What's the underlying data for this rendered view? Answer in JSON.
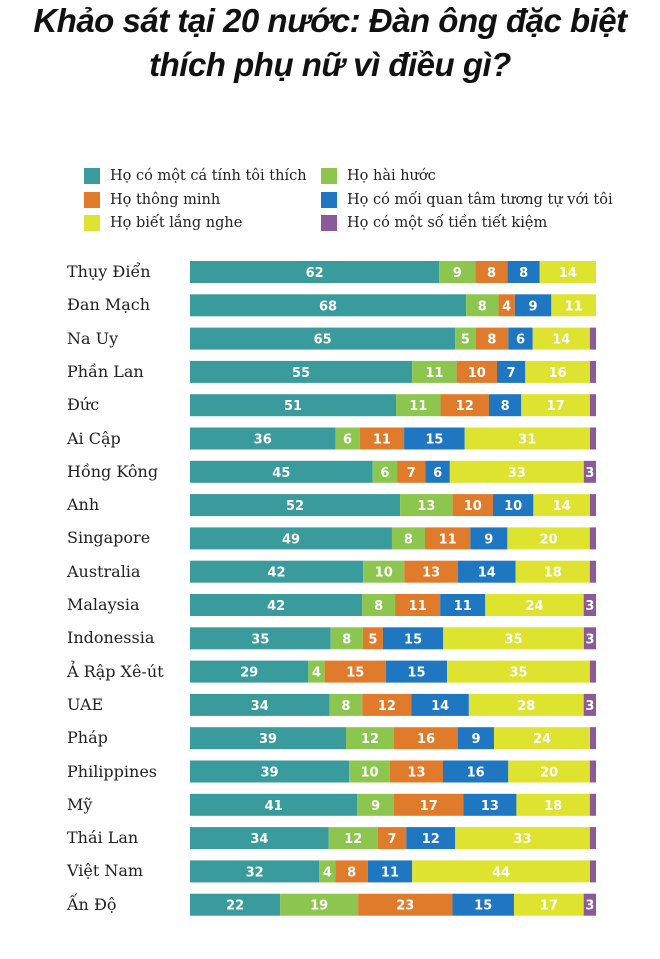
{
  "chart_data": {
    "type": "bar",
    "orientation": "horizontal",
    "stacked": true,
    "title": "Khảo sát tại 20 nước: Đàn ông đặc biệt thích phụ nữ vì điều gì?",
    "title_lines": [
      "Khảo sát tại 20 nước: Đàn ông đặc biệt",
      "thích phụ nữ vì điều gì?"
    ],
    "legend_placement": "top",
    "grid": false,
    "categories": [
      "Thụy Điển",
      "Đan Mạch",
      "Na Uy",
      "Phần Lan",
      "Đức",
      "Ai Cập",
      "Hồng Kông",
      "Anh",
      "Singapore",
      "Australia",
      "Malaysia",
      "Indonessia",
      "Ả Rập Xê-út",
      "UAE",
      "Pháp",
      "Philippines",
      "Mỹ",
      "Thái Lan",
      "Việt Nam",
      "Ấn Độ"
    ],
    "series": [
      {
        "name": "Họ có một cá tính tôi thích",
        "color": "#3a9b9d",
        "values": [
          62,
          68,
          65,
          55,
          51,
          36,
          45,
          52,
          49,
          42,
          42,
          35,
          29,
          34,
          39,
          39,
          41,
          34,
          32,
          22
        ]
      },
      {
        "name": "Họ hài hước",
        "color": "#8cc64e",
        "values": [
          9,
          8,
          5,
          11,
          11,
          6,
          6,
          13,
          8,
          10,
          8,
          8,
          4,
          8,
          12,
          10,
          9,
          12,
          4,
          19
        ]
      },
      {
        "name": "Họ thông minh",
        "color": "#e07b2c",
        "values": [
          8,
          4,
          8,
          10,
          12,
          11,
          7,
          10,
          11,
          13,
          11,
          5,
          15,
          12,
          16,
          13,
          17,
          7,
          8,
          23
        ]
      },
      {
        "name": "Họ có mối quan tâm tương tự với tôi",
        "color": "#1e77c0",
        "values": [
          8,
          9,
          6,
          7,
          8,
          15,
          6,
          10,
          9,
          14,
          11,
          15,
          15,
          14,
          9,
          16,
          13,
          12,
          11,
          15
        ]
      },
      {
        "name": "Họ biết lắng nghe",
        "color": "#dde32e",
        "values": [
          14,
          11,
          14,
          16,
          17,
          31,
          33,
          14,
          20,
          18,
          24,
          35,
          35,
          28,
          24,
          20,
          18,
          33,
          44,
          17
        ]
      },
      {
        "name": "Họ có một số tiền tiết kiệm",
        "color": "#8c5a9b",
        "values": [
          0,
          0,
          null,
          null,
          null,
          null,
          3,
          null,
          null,
          null,
          3,
          3,
          null,
          3,
          null,
          null,
          null,
          null,
          null,
          3
        ]
      }
    ],
    "legend_order": [
      0,
      1,
      2,
      3,
      4,
      5
    ]
  }
}
